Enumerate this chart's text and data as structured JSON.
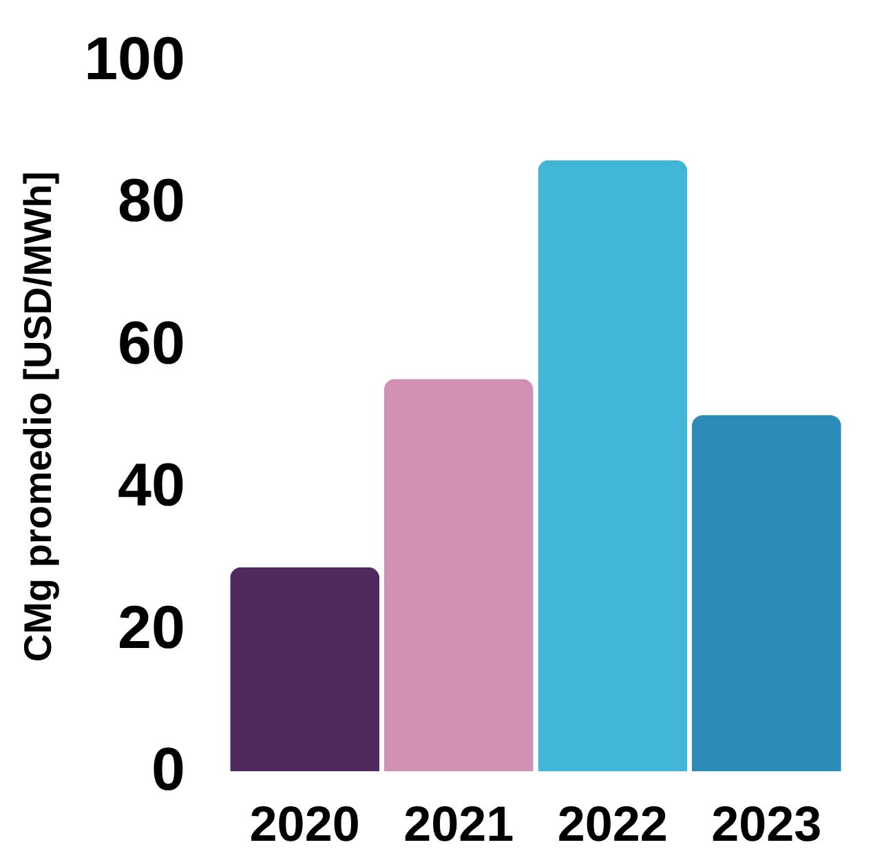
{
  "chart_data": {
    "type": "bar",
    "ylabel": "CMg promedio [USD/MWh]",
    "categories": [
      "2020",
      "2021",
      "2022",
      "2023"
    ],
    "values": [
      28.7,
      55.2,
      86.0,
      50.1
    ],
    "colors": [
      "#4e2a5e",
      "#d091b5",
      "#42b6d6",
      "#2d8bb9"
    ],
    "ylim": [
      0,
      100
    ],
    "yticks": [
      0,
      20,
      40,
      60,
      80,
      100
    ]
  }
}
